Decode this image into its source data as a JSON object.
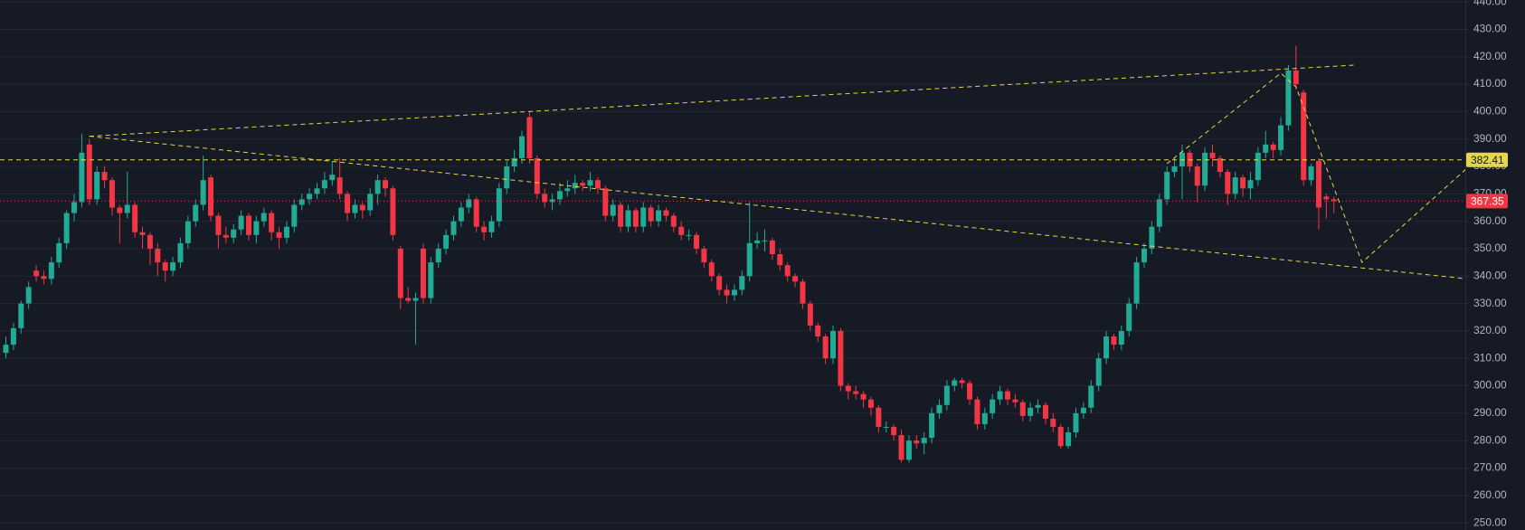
{
  "chart_data": {
    "type": "candlestick",
    "ylim": [
      247.4,
      440.7
    ],
    "yticks": [
      {
        "value": 250,
        "label": "250.00"
      },
      {
        "value": 260,
        "label": "260.00"
      },
      {
        "value": 270,
        "label": "270.00"
      },
      {
        "value": 280,
        "label": "280.00"
      },
      {
        "value": 290,
        "label": "290.00"
      },
      {
        "value": 300,
        "label": "300.00"
      },
      {
        "value": 310,
        "label": "310.00"
      },
      {
        "value": 320,
        "label": "320.00"
      },
      {
        "value": 330,
        "label": "330.00"
      },
      {
        "value": 340,
        "label": "340.00"
      },
      {
        "value": 350,
        "label": "350.00"
      },
      {
        "value": 360,
        "label": "360.00"
      },
      {
        "value": 370,
        "label": "370.00"
      },
      {
        "value": 380,
        "label": "380.00"
      },
      {
        "value": 390,
        "label": "390.00"
      },
      {
        "value": 400,
        "label": "400.00"
      },
      {
        "value": 410,
        "label": "410.00"
      },
      {
        "value": 420,
        "label": "420.00"
      },
      {
        "value": 430,
        "label": "430.00"
      },
      {
        "value": 440,
        "label": "440.00"
      }
    ],
    "grid": true,
    "up_color": "#22ab94",
    "down_color": "#f23645",
    "drawing_color": "#e6d74a",
    "price_line": 382.41,
    "last_price": 367.35,
    "ohlc": [
      [
        312,
        318,
        310,
        315
      ],
      [
        315,
        323,
        313,
        321
      ],
      [
        321,
        331,
        319,
        330
      ],
      [
        330,
        338,
        328,
        336
      ],
      [
        342,
        344,
        338,
        340
      ],
      [
        340,
        342,
        337,
        339
      ],
      [
        339,
        347,
        337,
        345
      ],
      [
        345,
        354,
        343,
        352
      ],
      [
        352,
        364,
        350,
        363
      ],
      [
        363,
        370,
        360,
        367
      ],
      [
        367,
        392,
        365,
        385
      ],
      [
        388,
        390,
        366,
        368
      ],
      [
        368,
        380,
        366,
        378
      ],
      [
        378,
        380,
        372,
        375
      ],
      [
        375,
        376,
        362,
        365
      ],
      [
        365,
        366,
        352,
        363
      ],
      [
        363,
        378,
        361,
        366
      ],
      [
        366,
        367,
        354,
        356
      ],
      [
        356,
        358,
        350,
        355
      ],
      [
        355,
        356,
        344,
        350
      ],
      [
        350,
        352,
        340,
        345
      ],
      [
        345,
        346,
        338,
        342
      ],
      [
        342,
        347,
        340,
        345
      ],
      [
        345,
        354,
        343,
        352
      ],
      [
        352,
        362,
        350,
        360
      ],
      [
        360,
        368,
        358,
        366
      ],
      [
        366,
        384,
        364,
        375
      ],
      [
        376,
        377,
        360,
        362
      ],
      [
        362,
        363,
        350,
        355
      ],
      [
        355,
        358,
        352,
        354
      ],
      [
        354,
        359,
        352,
        357
      ],
      [
        357,
        364,
        355,
        362
      ],
      [
        362,
        363,
        353,
        355
      ],
      [
        355,
        362,
        352,
        360
      ],
      [
        360,
        365,
        358,
        363
      ],
      [
        363,
        364,
        353,
        356
      ],
      [
        356,
        358,
        350,
        354
      ],
      [
        354,
        360,
        352,
        358
      ],
      [
        358,
        368,
        356,
        366
      ],
      [
        366,
        370,
        364,
        368
      ],
      [
        368,
        372,
        366,
        370
      ],
      [
        370,
        374,
        368,
        372
      ],
      [
        372,
        378,
        370,
        375
      ],
      [
        375,
        382,
        373,
        377
      ],
      [
        376,
        383,
        368,
        370
      ],
      [
        370,
        371,
        360,
        363
      ],
      [
        363,
        368,
        361,
        366
      ],
      [
        366,
        367,
        361,
        364
      ],
      [
        364,
        372,
        362,
        370
      ],
      [
        370,
        377,
        366,
        375
      ],
      [
        375,
        376,
        369,
        372
      ],
      [
        372,
        373,
        353,
        355
      ],
      [
        350,
        351,
        328,
        332
      ],
      [
        332,
        336,
        330,
        331
      ],
      [
        331,
        334,
        315,
        332
      ],
      [
        350,
        352,
        330,
        332
      ],
      [
        332,
        347,
        330,
        345
      ],
      [
        345,
        352,
        343,
        350
      ],
      [
        350,
        357,
        348,
        355
      ],
      [
        355,
        362,
        353,
        360
      ],
      [
        360,
        367,
        358,
        365
      ],
      [
        365,
        370,
        363,
        368
      ],
      [
        368,
        369,
        356,
        358
      ],
      [
        358,
        360,
        353,
        356
      ],
      [
        356,
        362,
        354,
        360
      ],
      [
        360,
        374,
        358,
        372
      ],
      [
        372,
        382,
        370,
        380
      ],
      [
        380,
        386,
        378,
        383
      ],
      [
        383,
        393,
        381,
        391
      ],
      [
        398,
        400,
        381,
        383
      ],
      [
        383,
        384,
        368,
        370
      ],
      [
        370,
        372,
        365,
        367
      ],
      [
        367,
        370,
        364,
        368
      ],
      [
        368,
        374,
        366,
        371
      ],
      [
        371,
        375,
        369,
        372
      ],
      [
        372,
        377,
        370,
        374
      ],
      [
        374,
        375,
        371,
        373
      ],
      [
        373,
        378,
        371,
        375
      ],
      [
        375,
        376,
        370,
        372
      ],
      [
        372,
        373,
        360,
        362
      ],
      [
        362,
        368,
        360,
        366
      ],
      [
        366,
        367,
        356,
        358
      ],
      [
        358,
        366,
        356,
        364
      ],
      [
        364,
        365,
        356,
        358
      ],
      [
        358,
        367,
        356,
        365
      ],
      [
        365,
        366,
        358,
        360
      ],
      [
        360,
        366,
        358,
        364
      ],
      [
        364,
        365,
        360,
        362
      ],
      [
        362,
        363,
        356,
        358
      ],
      [
        358,
        360,
        353,
        355
      ],
      [
        355,
        357,
        353,
        355
      ],
      [
        355,
        356,
        348,
        350
      ],
      [
        350,
        351,
        343,
        345
      ],
      [
        345,
        346,
        338,
        340
      ],
      [
        340,
        341,
        333,
        335
      ],
      [
        335,
        337,
        330,
        333
      ],
      [
        333,
        337,
        331,
        335
      ],
      [
        335,
        342,
        333,
        340
      ],
      [
        340,
        367,
        338,
        352
      ],
      [
        352,
        356,
        350,
        353
      ],
      [
        353,
        357,
        349,
        353
      ],
      [
        353,
        354,
        346,
        348
      ],
      [
        348,
        350,
        342,
        344
      ],
      [
        344,
        345,
        338,
        340
      ],
      [
        340,
        341,
        336,
        338
      ],
      [
        338,
        339,
        328,
        330
      ],
      [
        330,
        331,
        320,
        322
      ],
      [
        322,
        323,
        316,
        318
      ],
      [
        318,
        319,
        308,
        310
      ],
      [
        310,
        322,
        308,
        320
      ],
      [
        320,
        321,
        298,
        300
      ],
      [
        300,
        301,
        295,
        298
      ],
      [
        298,
        300,
        295,
        297
      ],
      [
        297,
        298,
        292,
        295
      ],
      [
        295,
        296,
        289,
        292
      ],
      [
        292,
        293,
        283,
        285
      ],
      [
        285,
        287,
        283,
        285
      ],
      [
        285,
        286,
        280,
        282
      ],
      [
        282,
        284,
        272,
        273
      ],
      [
        273,
        282,
        272,
        280
      ],
      [
        280,
        282,
        277,
        279
      ],
      [
        279,
        283,
        275,
        281
      ],
      [
        281,
        292,
        279,
        290
      ],
      [
        290,
        295,
        288,
        293
      ],
      [
        293,
        302,
        291,
        300
      ],
      [
        300,
        303,
        298,
        302
      ],
      [
        302,
        303,
        299,
        301
      ],
      [
        301,
        302,
        293,
        295
      ],
      [
        295,
        296,
        284,
        286
      ],
      [
        286,
        292,
        284,
        290
      ],
      [
        290,
        297,
        288,
        295
      ],
      [
        295,
        300,
        293,
        298
      ],
      [
        298,
        299,
        293,
        295
      ],
      [
        295,
        297,
        292,
        294
      ],
      [
        294,
        295,
        287,
        289
      ],
      [
        289,
        294,
        287,
        292
      ],
      [
        292,
        295,
        290,
        293
      ],
      [
        293,
        294,
        286,
        288
      ],
      [
        288,
        290,
        283,
        285
      ],
      [
        285,
        286,
        277,
        278
      ],
      [
        278,
        285,
        277,
        283
      ],
      [
        283,
        292,
        281,
        290
      ],
      [
        290,
        294,
        288,
        292
      ],
      [
        292,
        302,
        290,
        300
      ],
      [
        300,
        312,
        298,
        310
      ],
      [
        310,
        320,
        308,
        318
      ],
      [
        318,
        319,
        313,
        315
      ],
      [
        315,
        322,
        313,
        320
      ],
      [
        320,
        332,
        318,
        330
      ],
      [
        330,
        347,
        328,
        345
      ],
      [
        345,
        352,
        343,
        350
      ],
      [
        350,
        360,
        348,
        358
      ],
      [
        358,
        370,
        356,
        368
      ],
      [
        368,
        380,
        366,
        378
      ],
      [
        378,
        383,
        376,
        380
      ],
      [
        380,
        388,
        368,
        385
      ],
      [
        385,
        386,
        378,
        380
      ],
      [
        380,
        381,
        367,
        373
      ],
      [
        373,
        387,
        371,
        385
      ],
      [
        385,
        388,
        380,
        383
      ],
      [
        383,
        384,
        376,
        378
      ],
      [
        378,
        379,
        366,
        370
      ],
      [
        370,
        378,
        368,
        376
      ],
      [
        376,
        377,
        369,
        372
      ],
      [
        372,
        378,
        368,
        375
      ],
      [
        375,
        387,
        373,
        385
      ],
      [
        385,
        393,
        383,
        388
      ],
      [
        388,
        389,
        383,
        386
      ],
      [
        386,
        398,
        384,
        395
      ],
      [
        395,
        417,
        393,
        415
      ],
      [
        415,
        424,
        408,
        410
      ],
      [
        407,
        408,
        373,
        375
      ],
      [
        375,
        381,
        373,
        380
      ],
      [
        382,
        383,
        357,
        365
      ],
      [
        369,
        370,
        361,
        368
      ],
      [
        368,
        369,
        363,
        367.35
      ]
    ],
    "drawings": [
      {
        "x": [
          11,
          178
        ],
        "y": [
          391,
          417
        ]
      },
      {
        "x": [
          11,
          192.6
        ],
        "y": [
          391,
          339
        ]
      },
      {
        "x": [
          153,
          168,
          170,
          178.7,
          192.8
        ],
        "y": [
          381,
          414,
          409,
          345,
          380
        ]
      }
    ]
  }
}
